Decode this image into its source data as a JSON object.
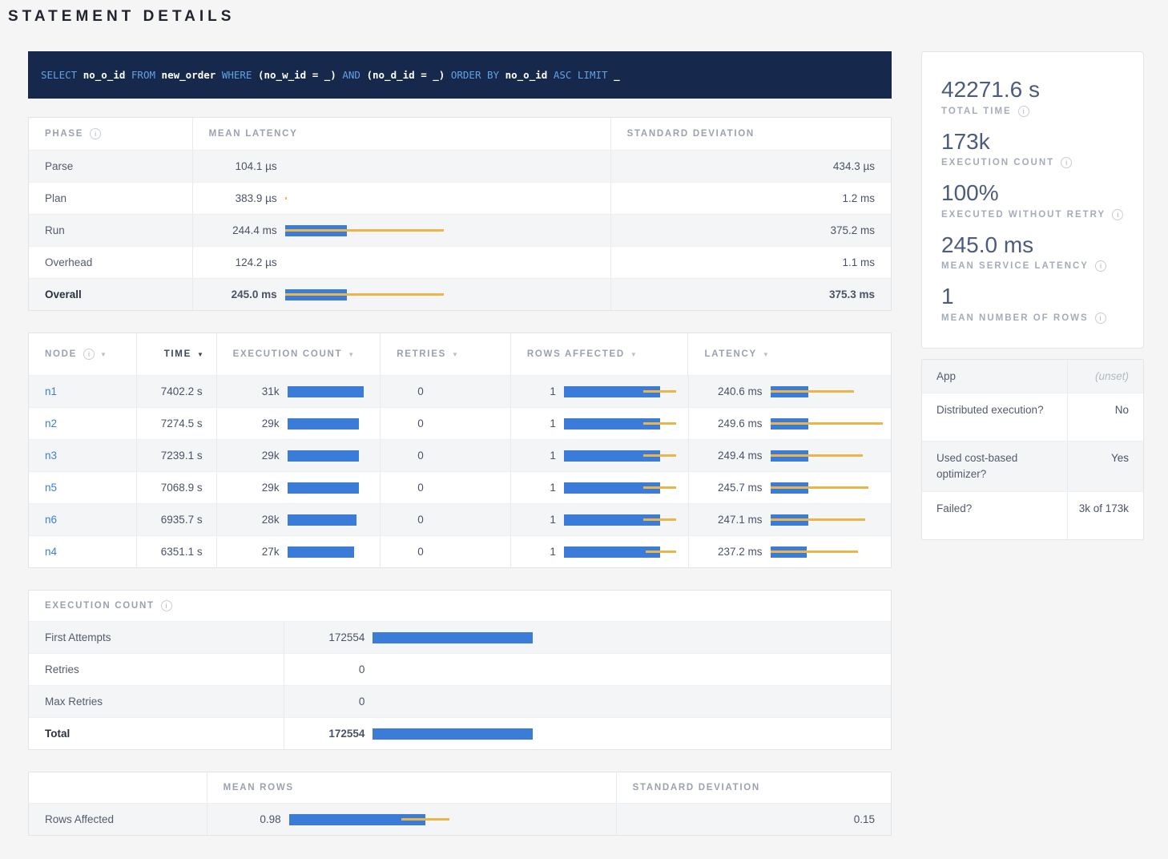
{
  "page": {
    "title": "STATEMENT DETAILS"
  },
  "sql": {
    "tokens": [
      {
        "t": "kw",
        "v": "SELECT"
      },
      {
        "t": "id",
        "v": "no_o_id"
      },
      {
        "t": "kw",
        "v": "FROM"
      },
      {
        "t": "id",
        "v": "new_order"
      },
      {
        "t": "kw",
        "v": "WHERE"
      },
      {
        "t": "id",
        "v": "(no_w_id = _)"
      },
      {
        "t": "kw",
        "v": "AND"
      },
      {
        "t": "id",
        "v": "(no_d_id = _)"
      },
      {
        "t": "kw",
        "v": "ORDER BY"
      },
      {
        "t": "id",
        "v": "no_o_id"
      },
      {
        "t": "kw",
        "v": "ASC LIMIT"
      },
      {
        "t": "id",
        "v": "_"
      }
    ]
  },
  "phase_table": {
    "headers": {
      "phase": "PHASE",
      "mean": "MEAN LATENCY",
      "std": "STANDARD DEVIATION"
    },
    "rows": [
      {
        "phase": "Parse",
        "mean": "104.1 µs",
        "std": "434.3 µs",
        "bar": null,
        "bold": false
      },
      {
        "phase": "Plan",
        "mean": "383.9 µs",
        "std": "1.2 ms",
        "bar": {
          "blue": 0,
          "line": [
            0,
            0.007
          ]
        },
        "bold": false
      },
      {
        "phase": "Run",
        "mean": "244.4 ms",
        "std": "375.2 ms",
        "bar": {
          "blue": 0.39,
          "line": [
            0,
            1
          ]
        },
        "bold": false
      },
      {
        "phase": "Overhead",
        "mean": "124.2 µs",
        "std": "1.1 ms",
        "bar": null,
        "bold": false
      },
      {
        "phase": "Overall",
        "mean": "245.0 ms",
        "std": "375.3 ms",
        "bar": {
          "blue": 0.39,
          "line": [
            0,
            1
          ]
        },
        "bold": true
      }
    ]
  },
  "node_table": {
    "headers": {
      "node": "NODE",
      "time": "TIME",
      "exec": "EXECUTION COUNT",
      "retries": "RETRIES",
      "rows": "ROWS AFFECTED",
      "latency": "LATENCY"
    },
    "sorted_column": "time",
    "rows": [
      {
        "node": "n1",
        "time": "7402.2 s",
        "exec": "31k",
        "exec_bar": 1.0,
        "retries": "0",
        "rows": "1",
        "rows_bar": {
          "blue": 0.857,
          "line": [
            0.71,
            1
          ]
        },
        "latency": "240.6 ms",
        "lat_bar": {
          "blue": 0.335,
          "line": [
            0,
            0.74
          ]
        }
      },
      {
        "node": "n2",
        "time": "7274.5 s",
        "exec": "29k",
        "exec_bar": 0.935,
        "retries": "0",
        "rows": "1",
        "rows_bar": {
          "blue": 0.857,
          "line": [
            0.71,
            1
          ]
        },
        "latency": "249.6 ms",
        "lat_bar": {
          "blue": 0.335,
          "line": [
            0,
            1.0
          ]
        }
      },
      {
        "node": "n3",
        "time": "7239.1 s",
        "exec": "29k",
        "exec_bar": 0.935,
        "retries": "0",
        "rows": "1",
        "rows_bar": {
          "blue": 0.857,
          "line": [
            0.71,
            1
          ]
        },
        "latency": "249.4 ms",
        "lat_bar": {
          "blue": 0.335,
          "line": [
            0,
            0.82
          ]
        }
      },
      {
        "node": "n5",
        "time": "7068.9 s",
        "exec": "29k",
        "exec_bar": 0.935,
        "retries": "0",
        "rows": "1",
        "rows_bar": {
          "blue": 0.857,
          "line": [
            0.71,
            1
          ]
        },
        "latency": "245.7 ms",
        "lat_bar": {
          "blue": 0.335,
          "line": [
            0,
            0.87
          ]
        }
      },
      {
        "node": "n6",
        "time": "6935.7 s",
        "exec": "28k",
        "exec_bar": 0.9,
        "retries": "0",
        "rows": "1",
        "rows_bar": {
          "blue": 0.857,
          "line": [
            0.71,
            1
          ]
        },
        "latency": "247.1 ms",
        "lat_bar": {
          "blue": 0.335,
          "line": [
            0,
            0.84
          ]
        }
      },
      {
        "node": "n4",
        "time": "6351.1 s",
        "exec": "27k",
        "exec_bar": 0.87,
        "retries": "0",
        "rows": "1",
        "rows_bar": {
          "blue": 0.86,
          "line": [
            0.73,
            1
          ]
        },
        "latency": "237.2 ms",
        "lat_bar": {
          "blue": 0.32,
          "line": [
            0,
            0.78
          ]
        }
      }
    ]
  },
  "exec_table": {
    "title": "EXECUTION COUNT",
    "rows": [
      {
        "label": "First Attempts",
        "value": "172554",
        "bar": {
          "blue": 1,
          "line": null
        },
        "bold": false
      },
      {
        "label": "Retries",
        "value": "0",
        "bar": null,
        "bold": false
      },
      {
        "label": "Max Retries",
        "value": "0",
        "bar": null,
        "bold": false
      },
      {
        "label": "Total",
        "value": "172554",
        "bar": {
          "blue": 1,
          "line": null
        },
        "bold": true
      }
    ]
  },
  "rows_table": {
    "headers": {
      "blank": "",
      "mean": "MEAN ROWS",
      "std": "STANDARD DEVIATION"
    },
    "rows": [
      {
        "label": "Rows Affected",
        "mean": "0.98",
        "bar": {
          "blue": 0.85,
          "line": [
            0.7,
            1
          ]
        },
        "std": "0.15"
      }
    ]
  },
  "summary": {
    "stats": [
      {
        "value": "42271.6 s",
        "label": "TOTAL TIME"
      },
      {
        "value": "173k",
        "label": "EXECUTION COUNT"
      },
      {
        "value": "100%",
        "label": "EXECUTED WITHOUT RETRY"
      },
      {
        "value": "245.0 ms",
        "label": "MEAN SERVICE LATENCY"
      },
      {
        "value": "1",
        "label": "MEAN NUMBER OF ROWS"
      }
    ]
  },
  "details": {
    "rows": [
      {
        "label": "App",
        "value": "(unset)",
        "italic": true
      },
      {
        "label": "Distributed execution?",
        "value": "No",
        "italic": false
      },
      {
        "label": "Used cost-based optimizer?",
        "value": "Yes",
        "italic": false
      },
      {
        "label": "Failed?",
        "value": "3k of 173k",
        "italic": false
      }
    ]
  },
  "colors": {
    "bar_blue": "#3A7CD8",
    "bar_orange": "#EDB44A",
    "link": "#3F7DD6",
    "sql_bg": "#16294C",
    "sql_keyword": "#61A1E4"
  }
}
